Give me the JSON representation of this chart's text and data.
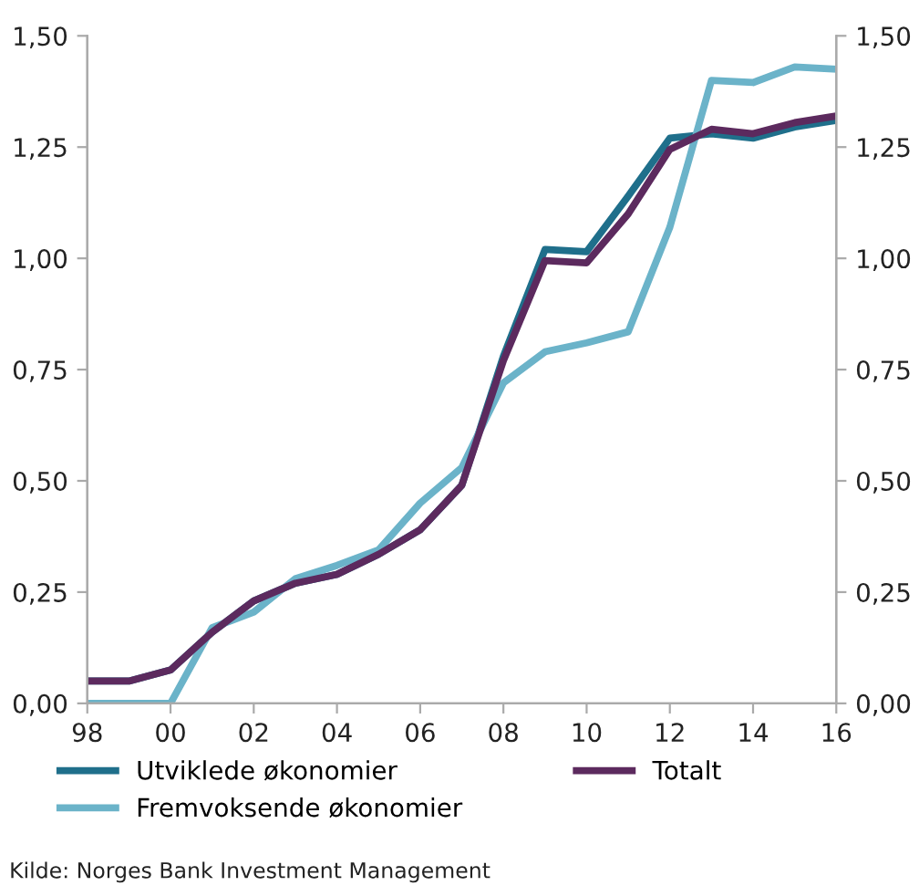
{
  "chart_data": {
    "type": "line",
    "x": [
      1998,
      1999,
      2000,
      2001,
      2002,
      2003,
      2004,
      2005,
      2006,
      2007,
      2008,
      2009,
      2010,
      2011,
      2012,
      2013,
      2014,
      2015,
      2016
    ],
    "series": [
      {
        "name": "Utviklede økonomier",
        "color": "#1f6f8b",
        "values": [
          0.05,
          0.05,
          0.075,
          0.16,
          0.23,
          0.27,
          0.29,
          0.335,
          0.39,
          0.49,
          0.78,
          1.02,
          1.015,
          1.14,
          1.27,
          1.28,
          1.27,
          1.295,
          1.31
        ]
      },
      {
        "name": "Fremvoksende økonomier",
        "color": "#6bb3c9",
        "values": [
          0,
          0,
          0,
          0.17,
          0.205,
          0.28,
          0.31,
          0.345,
          0.45,
          0.53,
          0.72,
          0.79,
          0.81,
          0.835,
          1.07,
          1.4,
          1.395,
          1.43,
          1.425
        ]
      },
      {
        "name": "Totalt",
        "color": "#5c2a5e",
        "values": [
          0.05,
          0.05,
          0.075,
          0.16,
          0.23,
          0.27,
          0.29,
          0.335,
          0.39,
          0.49,
          0.77,
          0.995,
          0.99,
          1.1,
          1.245,
          1.29,
          1.28,
          1.305,
          1.32
        ]
      }
    ],
    "xlim": [
      1998,
      2016
    ],
    "xticks": [
      {
        "value": 1998,
        "label": "98"
      },
      {
        "value": 2000,
        "label": "00"
      },
      {
        "value": 2002,
        "label": "02"
      },
      {
        "value": 2004,
        "label": "04"
      },
      {
        "value": 2006,
        "label": "06"
      },
      {
        "value": 2008,
        "label": "08"
      },
      {
        "value": 2010,
        "label": "10"
      },
      {
        "value": 2012,
        "label": "12"
      },
      {
        "value": 2014,
        "label": "14"
      },
      {
        "value": 2016,
        "label": "16"
      }
    ],
    "ylim": [
      0,
      1.5
    ],
    "yticks": [
      {
        "value": 0,
        "label": "0,00"
      },
      {
        "value": 0.25,
        "label": "0,25"
      },
      {
        "value": 0.5,
        "label": "0,50"
      },
      {
        "value": 0.75,
        "label": "0,75"
      },
      {
        "value": 1.0,
        "label": "1,00"
      },
      {
        "value": 1.25,
        "label": "1,25"
      },
      {
        "value": 1.5,
        "label": "1,50"
      }
    ],
    "y2lim": [
      0,
      1.5
    ],
    "y2ticks": [
      {
        "value": 0,
        "label": "0,00"
      },
      {
        "value": 0.25,
        "label": "0,25"
      },
      {
        "value": 0.5,
        "label": "0,50"
      },
      {
        "value": 0.75,
        "label": "0,75"
      },
      {
        "value": 1.0,
        "label": "1,00"
      },
      {
        "value": 1.25,
        "label": "1,25"
      },
      {
        "value": 1.5,
        "label": "1,50"
      }
    ],
    "legend": "bottom",
    "annotations": [
      "Kilde: Norges Bank Investment Management"
    ]
  }
}
